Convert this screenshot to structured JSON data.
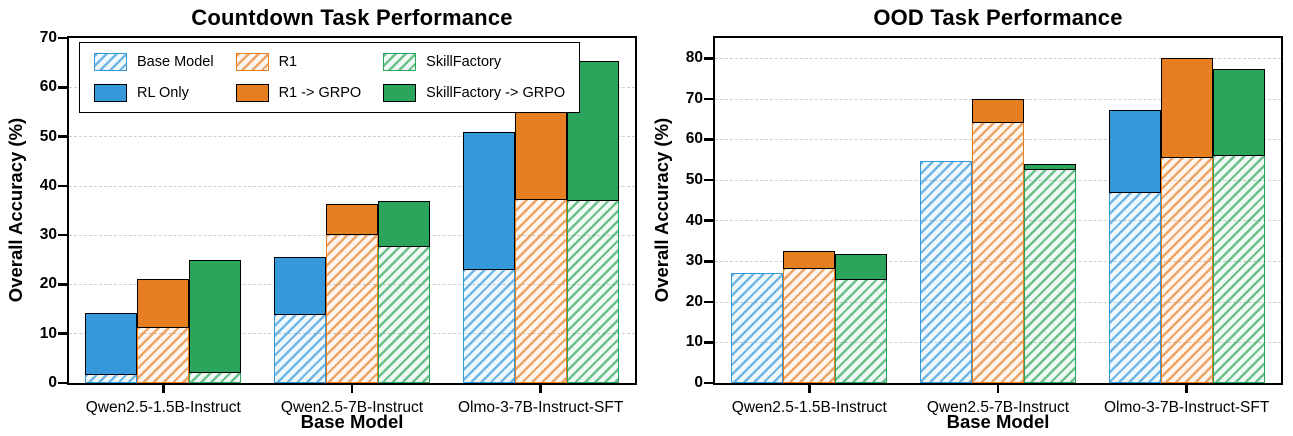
{
  "colors": {
    "blue": "#3498db",
    "orange": "#e67e22",
    "green": "#2ca55c",
    "grid": "#cfcfcf",
    "axis": "#000000"
  },
  "legend": {
    "items": [
      {
        "label": "Base Model",
        "color_key": "blue",
        "style": "hatched"
      },
      {
        "label": "R1",
        "color_key": "orange",
        "style": "hatched"
      },
      {
        "label": "SkillFactory",
        "color_key": "green",
        "style": "hatched"
      },
      {
        "label": "RL Only",
        "color_key": "blue",
        "style": "solid"
      },
      {
        "label": "R1 -> GRPO",
        "color_key": "orange",
        "style": "solid"
      },
      {
        "label": "SkillFactory -> GRPO",
        "color_key": "green",
        "style": "solid"
      }
    ]
  },
  "chart_data": [
    {
      "type": "bar",
      "title": "Countdown Task Performance",
      "xlabel": "Base Model",
      "ylabel": "Overall Accuracy (%)",
      "ylim": [
        0,
        70
      ],
      "yticks": [
        0,
        10,
        20,
        30,
        40,
        50,
        60,
        70
      ],
      "grid": "dashed horizontal",
      "legend_position": "upper left",
      "bar_style": "hatched-base-with-solid-cap",
      "categories": [
        "Qwen2.5-1.5B-Instruct",
        "Qwen2.5-7B-Instruct",
        "Olmo-3-7B-Instruct-SFT"
      ],
      "pairs": [
        {
          "color_key": "blue",
          "hatched": {
            "name": "Base Model",
            "values": [
              2.0,
              14.3,
              23.3
            ]
          },
          "solid": {
            "name": "RL Only",
            "values": [
              14.3,
              25.5,
              51.0
            ]
          }
        },
        {
          "color_key": "orange",
          "hatched": {
            "name": "R1",
            "values": [
              11.6,
              30.5,
              37.5
            ]
          },
          "solid": {
            "name": "R1 -> GRPO",
            "values": [
              21.2,
              36.4,
              59.6
            ]
          }
        },
        {
          "color_key": "green",
          "hatched": {
            "name": "SkillFactory",
            "values": [
              2.5,
              28.0,
              37.3
            ]
          },
          "solid": {
            "name": "SkillFactory -> GRPO",
            "values": [
              25.0,
              37.0,
              65.3
            ]
          }
        }
      ]
    },
    {
      "type": "bar",
      "title": "OOD Task Performance",
      "xlabel": "Base Model",
      "ylabel": "Overall Accuracy (%)",
      "ylim": [
        0,
        85
      ],
      "yticks": [
        0,
        10,
        20,
        30,
        40,
        50,
        60,
        70,
        80
      ],
      "grid": "dashed horizontal",
      "legend_position": null,
      "bar_style": "hatched-base-with-solid-cap",
      "categories": [
        "Qwen2.5-1.5B-Instruct",
        "Qwen2.5-7B-Instruct",
        "Olmo-3-7B-Instruct-SFT"
      ],
      "pairs": [
        {
          "color_key": "blue",
          "hatched": {
            "name": "Base Model",
            "values": [
              27.1,
              54.8,
              47.3
            ]
          },
          "solid": {
            "name": "RL Only",
            "values": [
              27.1,
              54.8,
              67.2
            ]
          }
        },
        {
          "color_key": "orange",
          "hatched": {
            "name": "R1",
            "values": [
              28.5,
              64.5,
              55.9
            ]
          },
          "solid": {
            "name": "R1 -> GRPO",
            "values": [
              32.5,
              70.0,
              80.0
            ]
          }
        },
        {
          "color_key": "green",
          "hatched": {
            "name": "SkillFactory",
            "values": [
              25.8,
              53.0,
              56.4
            ]
          },
          "solid": {
            "name": "SkillFactory -> GRPO",
            "values": [
              31.9,
              54.0,
              77.3
            ]
          }
        }
      ]
    }
  ]
}
